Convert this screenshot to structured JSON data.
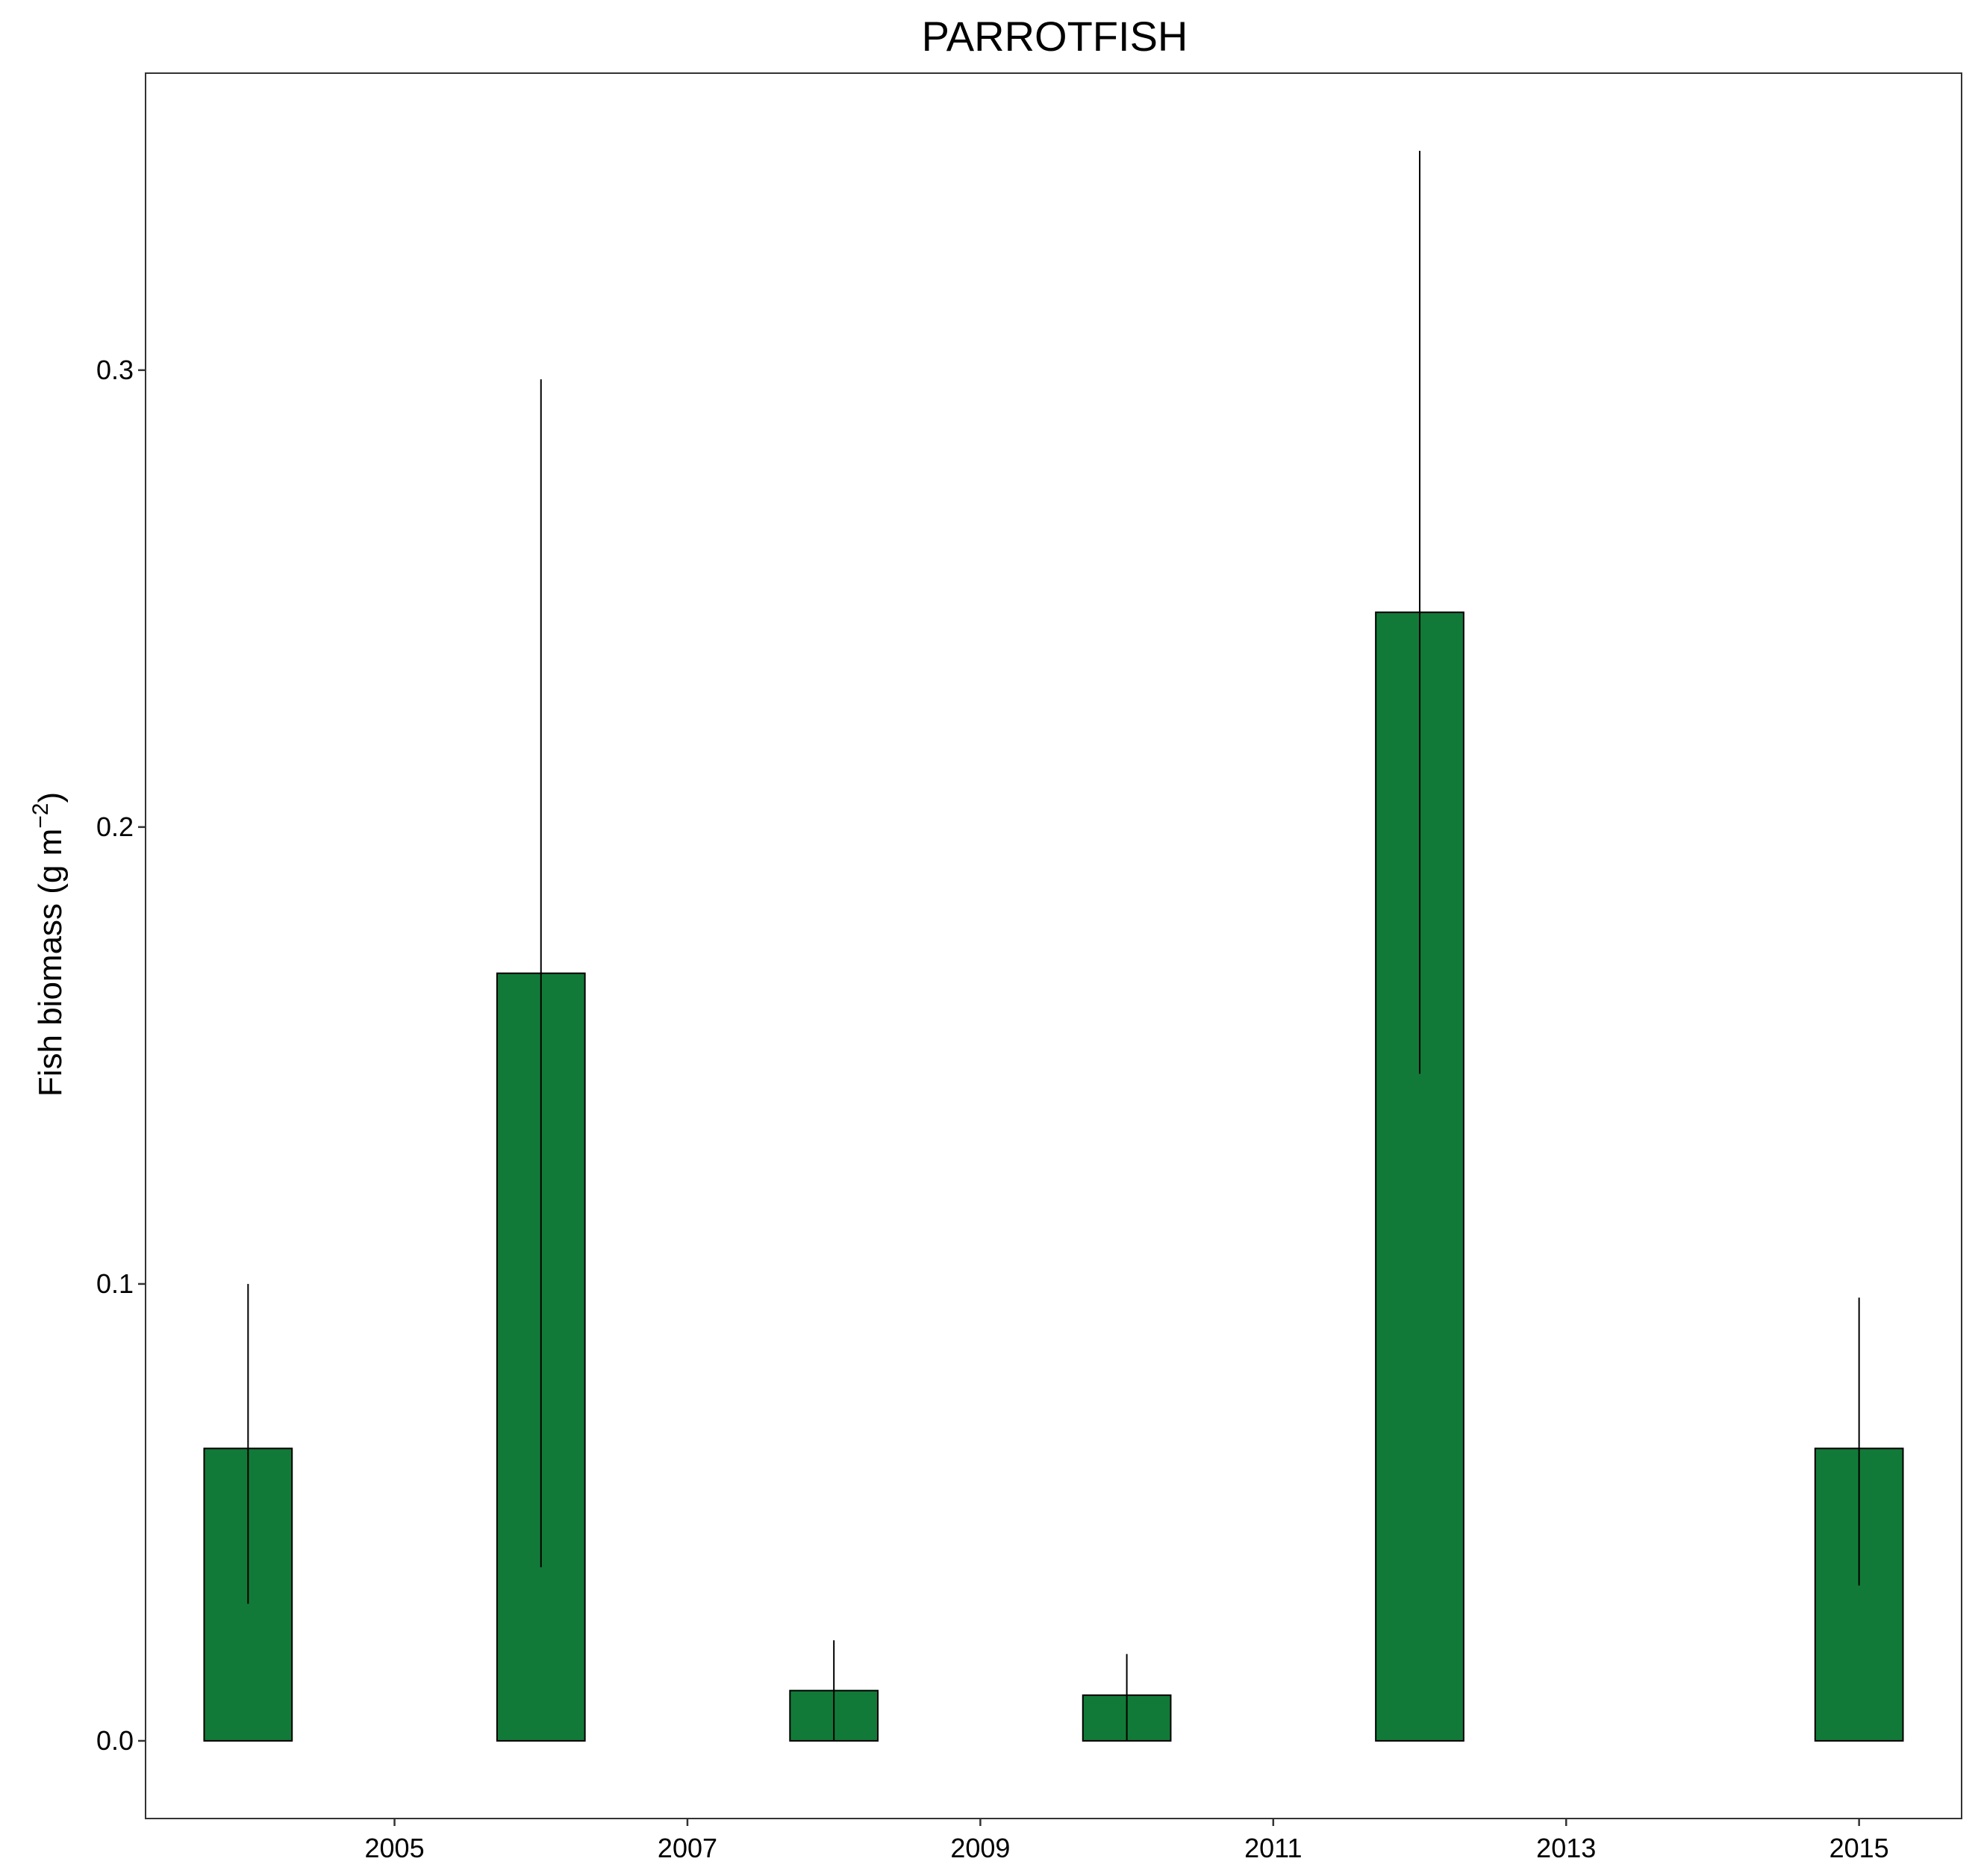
{
  "chart_data": {
    "type": "bar",
    "title": "PARROTFISH",
    "xlabel": "",
    "ylabel": "Fish biomass (g m",
    "ylabel_superscript": "−2",
    "ylabel_suffix": ")",
    "x": [
      2004,
      2006,
      2008,
      2010,
      2012,
      2015
    ],
    "values": [
      0.064,
      0.168,
      0.011,
      0.01,
      0.247,
      0.064
    ],
    "error_upper": [
      0.1,
      0.298,
      0.022,
      0.019,
      0.348,
      0.097
    ],
    "error_lower": [
      0.03,
      0.038,
      0.0,
      0.0,
      0.146,
      0.034
    ],
    "xlim": [
      2003.3,
      2015.7
    ],
    "ylim": [
      -0.017,
      0.365
    ],
    "x_ticks": [
      2005,
      2007,
      2009,
      2011,
      2013,
      2015
    ],
    "y_ticks": [
      0.0,
      0.1,
      0.2,
      0.3
    ],
    "x_tick_labels": [
      "2005",
      "2007",
      "2009",
      "2011",
      "2013",
      "2015"
    ],
    "y_tick_labels": [
      "0.0",
      "0.1",
      "0.2",
      "0.3"
    ],
    "bar_color": "#127a38",
    "grid": false,
    "legend": "none"
  }
}
